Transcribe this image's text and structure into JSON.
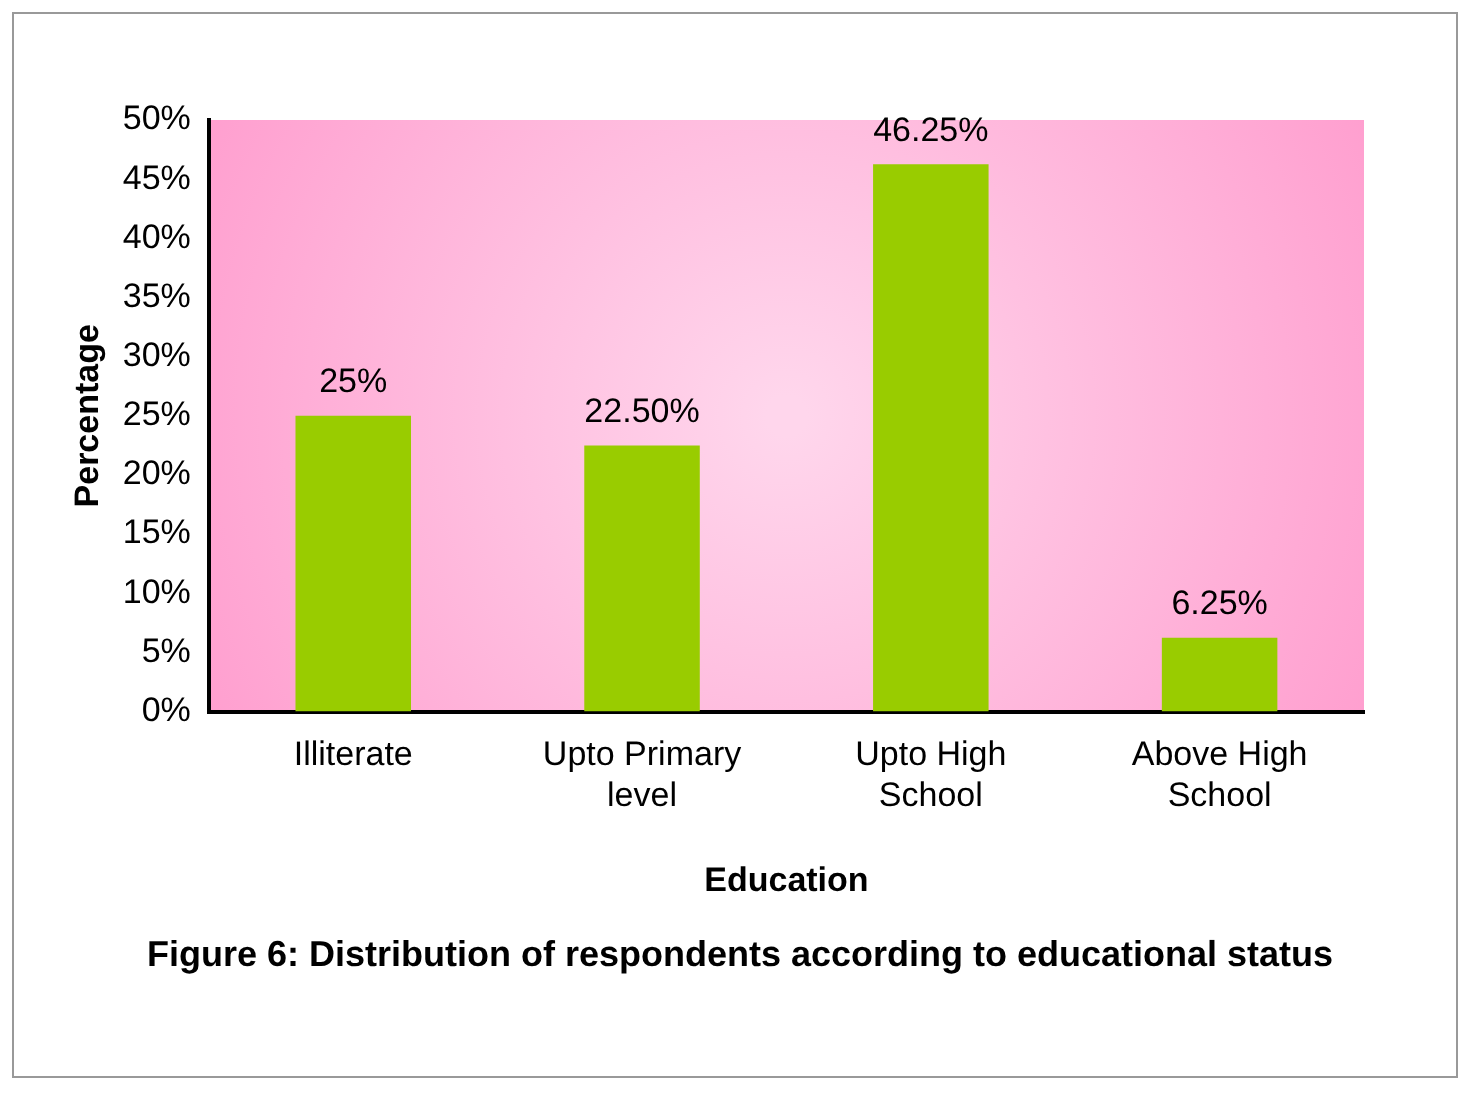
{
  "chart_data": {
    "type": "bar",
    "title": "Figure 6: Distribution of respondents according to educational status",
    "xlabel": "Education",
    "ylabel": "Percentage",
    "categories": [
      "Illiterate",
      "Upto Primary level",
      "Upto High School",
      "Above High School"
    ],
    "values": [
      25,
      22.5,
      46.25,
      6.25
    ],
    "color": "#99cc00",
    "value_labels": [
      "25%",
      "22.50%",
      "46.25%",
      "6.25%"
    ],
    "ylim": [
      0,
      50
    ],
    "yticks": [
      {
        "value": 0,
        "label": "0%"
      },
      {
        "value": 5,
        "label": "5%"
      },
      {
        "value": 10,
        "label": "10%"
      },
      {
        "value": 15,
        "label": "15%"
      },
      {
        "value": 20,
        "label": "20%"
      },
      {
        "value": 25,
        "label": "25%"
      },
      {
        "value": 30,
        "label": "30%"
      },
      {
        "value": 35,
        "label": "35%"
      },
      {
        "value": 40,
        "label": "40%"
      },
      {
        "value": 45,
        "label": "45%"
      },
      {
        "value": 50,
        "label": "50%"
      }
    ],
    "grid": false,
    "legend": false
  }
}
